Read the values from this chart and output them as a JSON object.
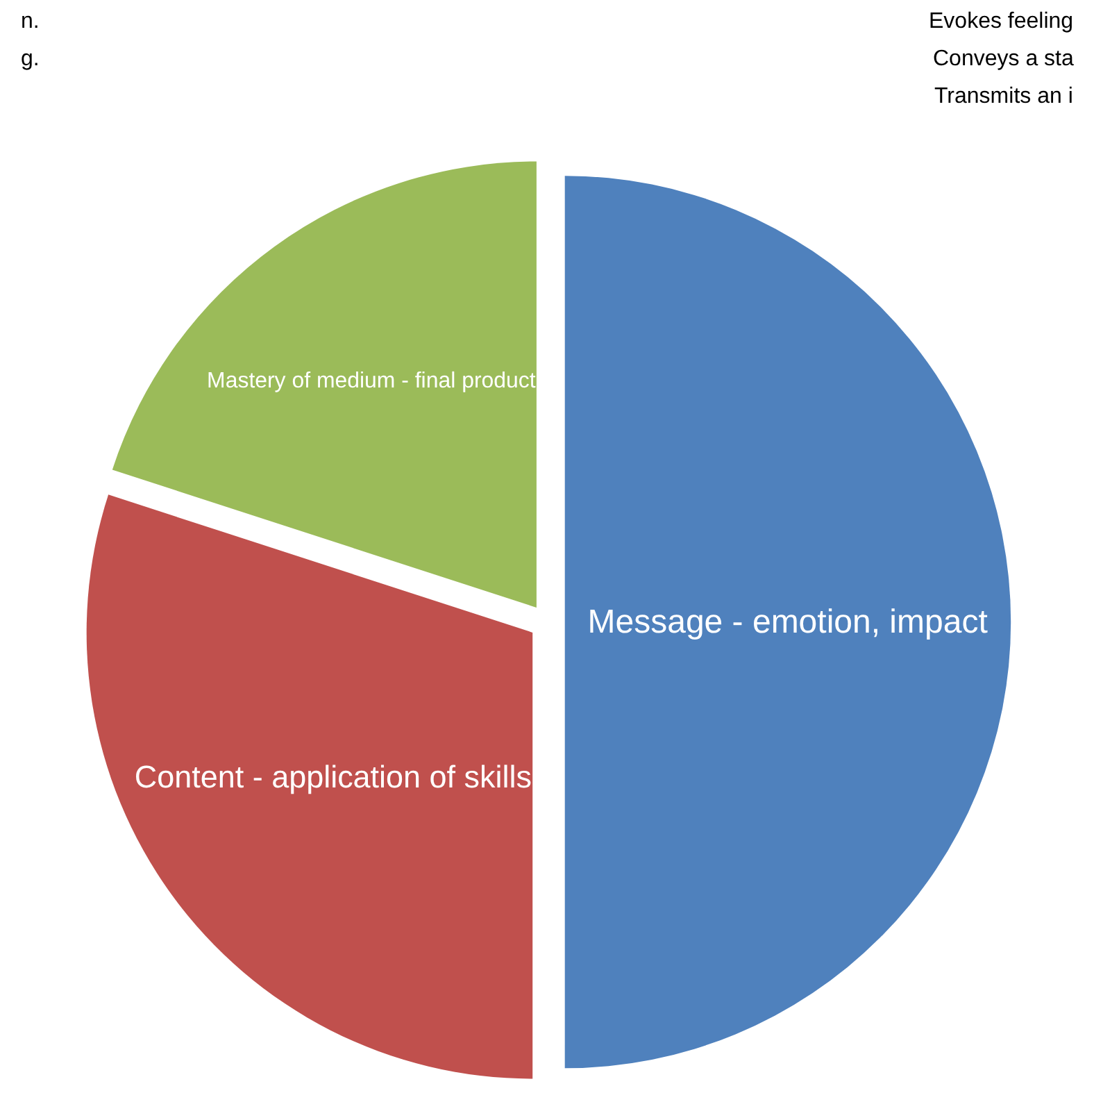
{
  "chart_data": {
    "type": "pie",
    "categories": [
      "Message - emotion, impact",
      "Content - application of skills",
      "Mastery of medium - final product"
    ],
    "values": [
      50,
      30,
      20
    ],
    "colors": [
      "#4f81bd",
      "#c0504d",
      "#9bbb59"
    ],
    "annotations": [
      "Evokes feeling",
      "Conveys a sta",
      "Transmits an i",
      "n.",
      "g."
    ],
    "legend": false
  }
}
